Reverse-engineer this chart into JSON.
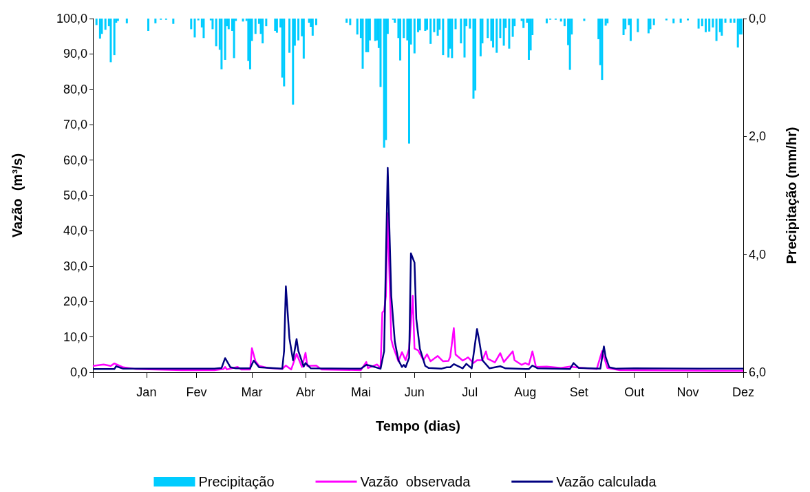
{
  "chart_data": {
    "type": "line",
    "xlabel": "Tempo (dias)",
    "ylabel": "Vazão  (m³/s)",
    "y2label": "Precipitação (mm/hr)",
    "xlim": [
      "--01-01",
      "--12-31"
    ],
    "xticks": [
      {
        "value": "--01-01",
        "label": null
      },
      {
        "value": "--01-31",
        "label": "Jan"
      },
      {
        "value": "--02-28",
        "label": "Fev"
      },
      {
        "value": "--03-31",
        "label": "Mar"
      },
      {
        "value": "--04-30",
        "label": "Abr"
      },
      {
        "value": "--05-31",
        "label": "Mai"
      },
      {
        "value": "--06-30",
        "label": "Jun"
      },
      {
        "value": "--07-31",
        "label": "Jul"
      },
      {
        "value": "--08-31",
        "label": "Aug"
      },
      {
        "value": "--09-30",
        "label": "Set"
      },
      {
        "value": "--10-31",
        "label": "Out"
      },
      {
        "value": "--11-30",
        "label": "Nov"
      },
      {
        "value": "--12-31",
        "label": "Dez"
      }
    ],
    "ylim": [
      0,
      100
    ],
    "yticks": [
      {
        "value": 0,
        "label": "0,0"
      },
      {
        "value": 10,
        "label": "10,0"
      },
      {
        "value": 20,
        "label": "20,0"
      },
      {
        "value": 30,
        "label": "30,0"
      },
      {
        "value": 40,
        "label": "40,0"
      },
      {
        "value": 50,
        "label": "50,0"
      },
      {
        "value": 60,
        "label": "60,0"
      },
      {
        "value": 70,
        "label": "70,0"
      },
      {
        "value": 80,
        "label": "80,0"
      },
      {
        "value": 90,
        "label": "90,0"
      },
      {
        "value": 100,
        "label": "100,0"
      }
    ],
    "y2lim": [
      6,
      0
    ],
    "y2ticks": [
      {
        "value": 0,
        "label": "0,0"
      },
      {
        "value": 2,
        "label": "2,0"
      },
      {
        "value": 4,
        "label": "4,0"
      },
      {
        "value": 6,
        "label": "6,0"
      }
    ],
    "legend": "bottom",
    "grid": false,
    "marker": "none",
    "line_style": "solid",
    "series": [
      {
        "name": "Precipitação",
        "type": "bar",
        "axis": "y2",
        "color": "#00ccff",
        "x": [
          "--01-03",
          "--01-05",
          "--01-06",
          "--01-08",
          "--01-10",
          "--01-11",
          "--01-13",
          "--01-14",
          "--01-15",
          "--01-20",
          "--02-01",
          "--02-05",
          "--02-08",
          "--02-11",
          "--02-15",
          "--02-25",
          "--02-27",
          "--03-01",
          "--03-03",
          "--03-04",
          "--03-08",
          "--03-09",
          "--03-11",
          "--03-13",
          "--03-14",
          "--03-16",
          "--03-17",
          "--03-18",
          "--03-20",
          "--03-21",
          "--03-22",
          "--03-26",
          "--03-28",
          "--03-29",
          "--03-30",
          "--03-31",
          "--04-02",
          "--04-04",
          "--04-05",
          "--04-06",
          "--04-08",
          "--04-13",
          "--04-14",
          "--04-16",
          "--04-17",
          "--04-18",
          "--04-21",
          "--04-23",
          "--04-24",
          "--04-26",
          "--04-28",
          "--04-29",
          "--05-02",
          "--05-03",
          "--05-04",
          "--05-06",
          "--05-23",
          "--05-25",
          "--05-29",
          "--05-31",
          "--06-01",
          "--06-03",
          "--06-04",
          "--06-05",
          "--06-08",
          "--06-09",
          "--06-10",
          "--06-11",
          "--06-13",
          "--06-14",
          "--06-15",
          "--06-18",
          "--06-19",
          "--06-21",
          "--06-22",
          "--06-24",
          "--06-26",
          "--06-27",
          "--06-28",
          "--06-30",
          "--07-02",
          "--07-03",
          "--07-06",
          "--07-07",
          "--07-09",
          "--07-11",
          "--07-13",
          "--07-14",
          "--07-16",
          "--07-19",
          "--07-20",
          "--07-21",
          "--07-23",
          "--07-26",
          "--07-28",
          "--07-29",
          "--07-31",
          "--08-02",
          "--08-03",
          "--08-06",
          "--08-07",
          "--08-10",
          "--08-12",
          "--08-13",
          "--08-15",
          "--08-17",
          "--08-19",
          "--08-20",
          "--08-22",
          "--08-24",
          "--08-25",
          "--08-29",
          "--08-30",
          "--09-01",
          "--09-02",
          "--09-03",
          "--09-04",
          "--09-12",
          "--09-14",
          "--09-17",
          "--09-20",
          "--09-22",
          "--09-24",
          "--09-25",
          "--09-26",
          "--10-03",
          "--10-11",
          "--10-12",
          "--10-13",
          "--10-15",
          "--10-16",
          "--10-25",
          "--10-26",
          "--10-28",
          "--10-29",
          "--11-02",
          "--11-08",
          "--11-09",
          "--11-11",
          "--11-18",
          "--11-22",
          "--11-26",
          "--11-30",
          "--12-06",
          "--12-08",
          "--12-10",
          "--12-12",
          "--12-14",
          "--12-16",
          "--12-18",
          "--12-19",
          "--12-21",
          "--12-24",
          "--12-26",
          "--12-28",
          "--12-29",
          "--12-30"
        ],
        "values": [
          0.11,
          0.34,
          0.26,
          0.19,
          0.13,
          0.74,
          0.62,
          0.07,
          0.04,
          0.08,
          0.21,
          0.08,
          0.02,
          0.02,
          0.09,
          0.18,
          0.32,
          0.03,
          0.15,
          0.33,
          0.03,
          0.18,
          0.47,
          0.53,
          0.86,
          0.7,
          0.13,
          0.18,
          0.21,
          0.67,
          0.04,
          0.05,
          0.04,
          0.72,
          0.86,
          0.38,
          0.26,
          0.09,
          0.26,
          0.42,
          0.13,
          0.21,
          0.24,
          0.15,
          1.0,
          1.15,
          0.58,
          1.46,
          0.46,
          0.37,
          0.3,
          0.68,
          0.07,
          0.14,
          0.29,
          0.11,
          0.07,
          0.11,
          0.27,
          0.33,
          0.85,
          0.57,
          0.57,
          0.37,
          0.38,
          0.37,
          0.5,
          1.16,
          2.19,
          2.06,
          0.26,
          0.02,
          0.07,
          0.33,
          0.71,
          0.33,
          0.37,
          2.12,
          0.44,
          0.59,
          0.23,
          0.2,
          0.21,
          0.19,
          0.43,
          0.23,
          0.29,
          0.19,
          0.62,
          0.66,
          0.51,
          0.67,
          0.18,
          0.42,
          0.66,
          0.13,
          0.17,
          1.36,
          1.22,
          0.64,
          0.42,
          0.33,
          0.38,
          0.49,
          0.58,
          0.33,
          0.46,
          0.16,
          0.51,
          0.31,
          0.13,
          0.04,
          0.16,
          0.07,
          0.7,
          0.54,
          0.28,
          0.08,
          0.02,
          0.02,
          0.05,
          0.13,
          0.45,
          0.87,
          0.27,
          0.04,
          0.35,
          0.79,
          1.04,
          0.12,
          0.08,
          0.28,
          0.18,
          0.11,
          0.38,
          0.23,
          0.25,
          0.18,
          0.11,
          0.03,
          0.08,
          0.07,
          0.03,
          0.17,
          0.13,
          0.23,
          0.22,
          0.15,
          0.38,
          0.23,
          0.29,
          0.07,
          0.07,
          0.07,
          0.49,
          0.27,
          0.27
        ]
      },
      {
        "name": "Vazão  observada",
        "color": "#ff00ff",
        "x": [
          "--01-01",
          "--01-07",
          "--01-11",
          "--01-13",
          "--01-18",
          "--01-25",
          "--02-20",
          "--03-10",
          "--03-15",
          "--03-16",
          "--03-17",
          "--03-23",
          "--03-25",
          "--03-30",
          "--03-31",
          "--04-02",
          "--04-04",
          "--04-09",
          "--04-17",
          "--04-19",
          "--04-22",
          "--04-25",
          "--04-28",
          "--04-30",
          "--05-01",
          "--05-06",
          "--05-09",
          "--05-31",
          "--06-03",
          "--06-04",
          "--06-09",
          "--06-11",
          "--06-12",
          "--06-13",
          "--06-14",
          "--06-15",
          "--06-17",
          "--06-18",
          "--06-21",
          "--06-23",
          "--06-25",
          "--06-27",
          "--06-29",
          "--06-30",
          "--07-02",
          "--07-05",
          "--07-07",
          "--07-09",
          "--07-13",
          "--07-16",
          "--07-19",
          "--07-20",
          "--07-22",
          "--07-23",
          "--07-27",
          "--07-30",
          "--08-02",
          "--08-04",
          "--08-07",
          "--08-09",
          "--08-10",
          "--08-14",
          "--08-17",
          "--08-19",
          "--08-24",
          "--08-25",
          "--08-29",
          "--08-31",
          "--09-02",
          "--09-04",
          "--09-06",
          "--09-12",
          "--09-20",
          "--09-25",
          "--09-28",
          "--10-10",
          "--10-13",
          "--10-16",
          "--10-23",
          "--11-18",
          "--12-14",
          "--12-31"
        ],
        "values": [
          1.8,
          2.2,
          1.8,
          2.5,
          1.4,
          0.9,
          0.6,
          0.6,
          0.9,
          1.5,
          0.8,
          1.5,
          0.8,
          0.8,
          6.8,
          3.1,
          1.8,
          1.2,
          0.9,
          1.9,
          0.8,
          5.2,
          1.5,
          5.5,
          1.8,
          1.9,
          0.8,
          0.6,
          2.9,
          1.2,
          2.2,
          1.2,
          16.9,
          17.4,
          21.6,
          45.0,
          9.3,
          7.3,
          3.1,
          5.7,
          3.4,
          6.7,
          21.6,
          6.7,
          6.2,
          3.4,
          5.1,
          3.1,
          4.6,
          3.1,
          3.2,
          4.4,
          12.5,
          5.0,
          3.3,
          4.2,
          2.6,
          3.4,
          3.4,
          5.9,
          3.8,
          2.8,
          5.4,
          2.9,
          5.9,
          3.4,
          2.1,
          2.6,
          2.1,
          5.9,
          1.5,
          1.6,
          1.2,
          1.6,
          1.4,
          0.9,
          6.0,
          1.2,
          0.6,
          0.5,
          0.4,
          0.4
        ]
      },
      {
        "name": "Vazão calculada",
        "color": "#000080",
        "x": [
          "--01-01",
          "--01-13",
          "--01-14",
          "--01-18",
          "--03-10",
          "--03-14",
          "--03-16",
          "--03-19",
          "--03-22",
          "--03-30",
          "--04-01",
          "--04-04",
          "--04-17",
          "--04-18",
          "--04-19",
          "--04-21",
          "--04-23",
          "--04-25",
          "--04-26",
          "--04-29",
          "--04-30",
          "--05-03",
          "--05-31",
          "--06-03",
          "--06-05",
          "--06-11",
          "--06-13",
          "--06-15",
          "--06-17",
          "--06-19",
          "--06-21",
          "--06-23",
          "--06-24",
          "--06-25",
          "--06-27",
          "--06-28",
          "--06-30",
          "--07-01",
          "--07-03",
          "--07-06",
          "--07-08",
          "--07-15",
          "--07-18",
          "--07-20",
          "--07-22",
          "--07-27",
          "--07-29",
          "--08-01",
          "--08-04",
          "--08-05",
          "--08-07",
          "--08-11",
          "--08-17",
          "--08-20",
          "--09-02",
          "--09-04",
          "--09-07",
          "--09-25",
          "--09-27",
          "--09-30",
          "--10-12",
          "--10-14",
          "--10-15",
          "--10-17",
          "--10-21",
          "--10-31",
          "--12-31"
        ],
        "values": [
          0.9,
          0.9,
          1.7,
          1.0,
          1.0,
          1.2,
          4.0,
          1.4,
          1.1,
          1.1,
          3.3,
          1.4,
          1.0,
          6.0,
          24.3,
          9.6,
          3.4,
          9.4,
          6.0,
          1.6,
          2.6,
          1.1,
          1.0,
          2.1,
          1.9,
          1.0,
          6.0,
          57.8,
          21.6,
          8.6,
          3.4,
          1.5,
          2.1,
          1.4,
          4.1,
          33.6,
          31.0,
          15.1,
          6.7,
          1.8,
          1.2,
          1.0,
          1.4,
          1.4,
          2.3,
          1.1,
          2.4,
          1.1,
          12.2,
          9.6,
          3.4,
          1.1,
          1.7,
          1.1,
          0.9,
          1.9,
          1.1,
          0.9,
          2.6,
          1.2,
          1.0,
          7.3,
          4.3,
          1.4,
          1.0,
          1.1,
          1.0
        ]
      }
    ]
  }
}
